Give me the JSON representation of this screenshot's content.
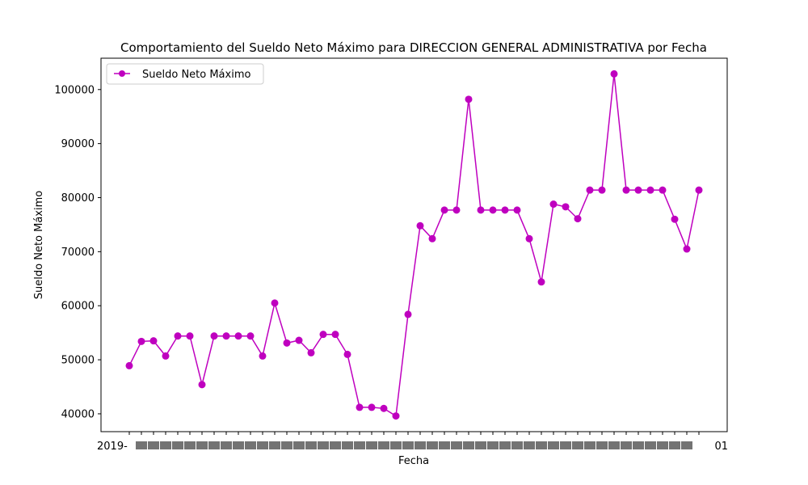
{
  "chart_data": {
    "type": "line",
    "title": "Comportamiento del Sueldo Neto Máximo para DIRECCION GENERAL ADMINISTRATIVA por Fecha",
    "xlabel": "Fecha",
    "ylabel": "Sueldo Neto Máximo",
    "ylim": [
      36700,
      105800
    ],
    "yticks": [
      40000,
      50000,
      60000,
      70000,
      80000,
      90000,
      100000
    ],
    "x_tick_labels_note": "overlapping date labels, only the first and last are partially legible",
    "x_first_label": "2019-",
    "x_last_label": "01",
    "grid": false,
    "legend_position": "upper-left",
    "series": [
      {
        "name": "Sueldo Neto Máximo",
        "color": "#bf00bf",
        "marker": "circle",
        "values": [
          48900,
          53400,
          53500,
          50700,
          54400,
          54400,
          45400,
          54400,
          54400,
          54400,
          54400,
          50700,
          60500,
          53100,
          53600,
          51300,
          54700,
          54700,
          51000,
          41200,
          41200,
          41000,
          39600,
          58400,
          74800,
          72400,
          77700,
          77700,
          98200,
          77700,
          77700,
          77700,
          77700,
          72400,
          64400,
          78800,
          78300,
          76100,
          81400,
          81400,
          102900,
          81400,
          81400,
          81400,
          81400,
          76000,
          70500,
          81400
        ]
      }
    ]
  }
}
